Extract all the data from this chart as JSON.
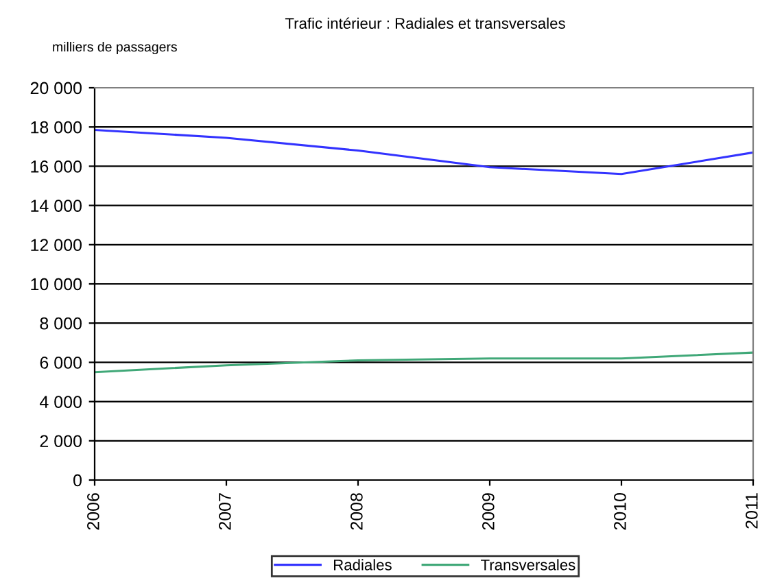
{
  "chart_data": {
    "type": "line",
    "title": "Trafic intérieur : Radiales et transversales",
    "ylabel": "milliers de passagers",
    "categories": [
      "2006",
      "2007",
      "2008",
      "2009",
      "2010",
      "2011"
    ],
    "series": [
      {
        "name": "Radiales",
        "color": "#3333ff",
        "values": [
          17850,
          17450,
          16800,
          15950,
          15600,
          16700
        ]
      },
      {
        "name": "Transversales",
        "color": "#40a878",
        "values": [
          5500,
          5850,
          6100,
          6200,
          6200,
          6500
        ]
      }
    ],
    "ylim": [
      0,
      20000
    ],
    "yticks": [
      0,
      {
        "value": 2000,
        "label": "2 000"
      },
      {
        "value": 4000,
        "label": "4 000"
      },
      {
        "value": 6000,
        "label": "6 000"
      },
      {
        "value": 8000,
        "label": "8 000"
      },
      {
        "value": 10000,
        "label": "10 000"
      },
      {
        "value": 12000,
        "label": "12 000"
      },
      {
        "value": 14000,
        "label": "14 000"
      },
      {
        "value": 16000,
        "label": "16 000"
      },
      {
        "value": 18000,
        "label": "18 000"
      },
      {
        "value": 20000,
        "label": "20 000"
      }
    ],
    "grid": "y",
    "legend": "bottom",
    "marker": "none",
    "line_style": "solid"
  }
}
